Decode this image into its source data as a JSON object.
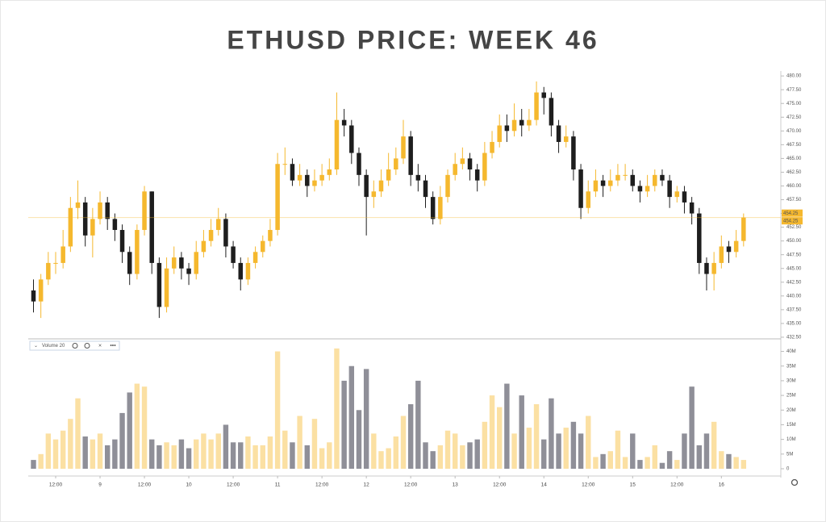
{
  "title": "ETHUSD PRICE: WEEK 46",
  "chart_data": {
    "type": "candlestick",
    "categories": [
      null,
      null,
      null,
      "12:00",
      null,
      null,
      null,
      null,
      null,
      "9",
      null,
      null,
      null,
      null,
      null,
      "12:00",
      null,
      null,
      null,
      null,
      null,
      "10",
      null,
      null,
      null,
      null,
      null,
      "12:00",
      null,
      null,
      null,
      null,
      null,
      "11",
      null,
      null,
      null,
      null,
      null,
      "12:00",
      null,
      null,
      null,
      null,
      null,
      "12",
      null,
      null,
      null,
      null,
      null,
      "12:00",
      null,
      null,
      null,
      null,
      null,
      "13",
      null,
      null,
      null,
      null,
      null,
      "12:00",
      null,
      null,
      null,
      null,
      null,
      "14",
      null,
      null,
      null,
      null,
      null,
      "12:00",
      null,
      null,
      null,
      null,
      null,
      "15",
      null,
      null,
      null,
      null,
      null,
      "12:00",
      null,
      null,
      null,
      null,
      null,
      "16",
      null,
      null,
      null
    ],
    "open": [
      441,
      439,
      443,
      446,
      446,
      449,
      456,
      457,
      451,
      454,
      457,
      454,
      452,
      448,
      444,
      452,
      459,
      446,
      438,
      445,
      447,
      445,
      444,
      448,
      450,
      452,
      454,
      449,
      446,
      443,
      446,
      448,
      450,
      452,
      464,
      464,
      461,
      462,
      460,
      461,
      462,
      463,
      472,
      471,
      466,
      462,
      458,
      459,
      461,
      463,
      465,
      469,
      462,
      461,
      458,
      454,
      458,
      462,
      464,
      465,
      463,
      461,
      466,
      468,
      471,
      470,
      472,
      471,
      472,
      477,
      476,
      471,
      468,
      469,
      463,
      456,
      459,
      461,
      460,
      461,
      462,
      462,
      460,
      459,
      460,
      462,
      461,
      458,
      459,
      457,
      455,
      446,
      444,
      446,
      449,
      448,
      450
    ],
    "high": [
      443,
      444,
      448,
      448,
      452,
      458,
      461,
      458,
      456,
      459,
      458,
      455,
      453,
      449,
      453,
      460,
      459,
      447,
      447,
      449,
      448,
      446,
      450,
      452,
      454,
      456,
      455,
      450,
      447,
      447,
      449,
      451,
      454,
      466,
      467,
      465,
      464,
      463,
      463,
      464,
      465,
      477,
      474,
      472,
      467,
      463,
      461,
      463,
      466,
      467,
      472,
      470,
      464,
      462,
      459,
      460,
      463,
      466,
      467,
      466,
      464,
      468,
      470,
      473,
      473,
      475,
      474,
      474,
      479,
      478,
      477,
      472,
      471,
      470,
      464,
      461,
      463,
      462,
      463,
      464,
      464,
      463,
      461,
      462,
      463,
      463,
      462,
      460,
      460,
      458,
      456,
      447,
      448,
      451,
      450,
      452,
      455
    ],
    "low": [
      437,
      436,
      442,
      444,
      445,
      448,
      454,
      449,
      447,
      453,
      452,
      450,
      446,
      442,
      443,
      451,
      444,
      436,
      437,
      444,
      443,
      442,
      443,
      447,
      449,
      451,
      447,
      445,
      441,
      442,
      445,
      447,
      449,
      451,
      462,
      460,
      460,
      458,
      459,
      460,
      461,
      462,
      469,
      464,
      460,
      451,
      456,
      458,
      460,
      462,
      464,
      460,
      459,
      456,
      453,
      453,
      457,
      461,
      463,
      461,
      459,
      460,
      465,
      467,
      468,
      469,
      469,
      470,
      471,
      473,
      469,
      466,
      467,
      461,
      454,
      455,
      458,
      458,
      459,
      460,
      461,
      459,
      457,
      458,
      459,
      460,
      456,
      457,
      455,
      453,
      444,
      441,
      441,
      445,
      446,
      447,
      449
    ],
    "close": [
      439,
      443,
      446,
      446,
      449,
      456,
      457,
      451,
      454,
      457,
      454,
      452,
      448,
      444,
      452,
      459,
      446,
      438,
      445,
      447,
      445,
      444,
      448,
      450,
      452,
      454,
      449,
      446,
      443,
      446,
      448,
      450,
      452,
      464,
      464,
      461,
      462,
      460,
      461,
      462,
      463,
      472,
      471,
      466,
      462,
      458,
      459,
      461,
      463,
      465,
      469,
      462,
      461,
      458,
      454,
      458,
      462,
      464,
      465,
      463,
      461,
      466,
      468,
      471,
      470,
      472,
      471,
      472,
      477,
      476,
      471,
      468,
      469,
      463,
      456,
      459,
      461,
      460,
      461,
      462,
      462,
      460,
      459,
      460,
      462,
      461,
      458,
      459,
      457,
      455,
      446,
      444,
      446,
      449,
      448,
      450,
      454.25
    ],
    "up_color": "#f5b82e",
    "down_color": "#1e1e1e",
    "ylim": [
      432.2,
      480.9
    ],
    "yticks": [
      {
        "value": 432.5,
        "label": "432.50"
      },
      {
        "value": 435,
        "label": "435.00"
      },
      {
        "value": 437.5,
        "label": "437.50"
      },
      {
        "value": 440,
        "label": "440.00"
      },
      {
        "value": 442.5,
        "label": "442.50"
      },
      {
        "value": 445,
        "label": "445.00"
      },
      {
        "value": 447.5,
        "label": "447.50"
      },
      {
        "value": 450,
        "label": "450.00"
      },
      {
        "value": 452.5,
        "label": "452.50"
      },
      {
        "value": 455,
        "label": "455.00"
      },
      {
        "value": 457.5,
        "label": "457.50"
      },
      {
        "value": 460,
        "label": "460.00"
      },
      {
        "value": 462.5,
        "label": "462.50"
      },
      {
        "value": 465,
        "label": "465.00"
      },
      {
        "value": 467.5,
        "label": "467.50"
      },
      {
        "value": 470,
        "label": "470.00"
      },
      {
        "value": 472.5,
        "label": "472.50"
      },
      {
        "value": 475,
        "label": "475.00"
      },
      {
        "value": 477.5,
        "label": "477.50"
      },
      {
        "value": 480,
        "label": "480.00"
      }
    ],
    "price_line": 454.25,
    "volume": {
      "name": "Volume 20",
      "values": [
        3,
        5,
        12,
        10,
        13,
        17,
        24,
        11,
        10,
        12,
        8,
        10,
        19,
        26,
        29,
        28,
        10,
        8,
        9,
        8,
        10,
        7,
        10,
        12,
        10,
        12,
        15,
        9,
        9,
        11,
        8,
        8,
        11,
        40,
        13,
        9,
        18,
        8,
        17,
        7,
        9,
        41,
        30,
        35,
        20,
        34,
        12,
        6,
        7,
        11,
        18,
        22,
        30,
        9,
        6,
        8,
        13,
        12,
        8,
        9,
        10,
        16,
        25,
        21,
        29,
        12,
        25,
        14,
        22,
        10,
        24,
        12,
        14,
        16,
        12,
        18,
        4,
        5,
        6,
        13,
        4,
        12,
        3,
        4,
        8,
        2,
        6,
        3,
        12,
        28,
        8,
        12,
        16,
        6,
        5,
        4,
        3
      ],
      "up_color": "#fbe0a3",
      "down_color": "#8f8f98",
      "ylim": [
        0,
        44
      ],
      "yticks": [
        0,
        {
          "value": 5,
          "label": "5M"
        },
        {
          "value": 10,
          "label": "10M"
        },
        {
          "value": 15,
          "label": "15M"
        },
        {
          "value": 20,
          "label": "20M"
        },
        {
          "value": 25,
          "label": "25M"
        },
        {
          "value": 30,
          "label": "30M"
        },
        {
          "value": 35,
          "label": "35M"
        },
        {
          "value": 40,
          "label": "40M"
        }
      ]
    }
  }
}
